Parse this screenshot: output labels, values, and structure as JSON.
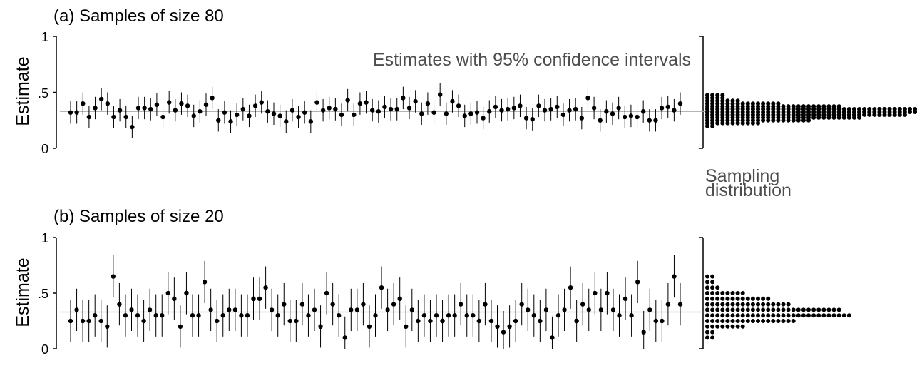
{
  "chart_data": [
    {
      "type": "scatter",
      "title": "(a) Samples of size 80",
      "ylabel": "Estimate",
      "ylim": [
        0,
        1
      ],
      "yticks": [
        "0",
        ".5",
        "1"
      ],
      "true_value": 0.33,
      "annotation": "Estimates with 95% confidence intervals",
      "estimates": [
        0.32,
        0.32,
        0.4,
        0.28,
        0.36,
        0.44,
        0.4,
        0.28,
        0.34,
        0.28,
        0.19,
        0.36,
        0.36,
        0.35,
        0.39,
        0.28,
        0.41,
        0.34,
        0.4,
        0.38,
        0.29,
        0.33,
        0.39,
        0.45,
        0.25,
        0.32,
        0.24,
        0.3,
        0.35,
        0.29,
        0.38,
        0.41,
        0.33,
        0.31,
        0.29,
        0.24,
        0.34,
        0.28,
        0.32,
        0.24,
        0.41,
        0.34,
        0.36,
        0.35,
        0.3,
        0.43,
        0.3,
        0.4,
        0.41,
        0.34,
        0.33,
        0.37,
        0.35,
        0.35,
        0.45,
        0.36,
        0.42,
        0.31,
        0.4,
        0.32,
        0.48,
        0.31,
        0.42,
        0.38,
        0.29,
        0.31,
        0.32,
        0.27,
        0.33,
        0.37,
        0.34,
        0.35,
        0.36,
        0.38,
        0.27,
        0.26,
        0.38,
        0.34,
        0.35,
        0.37,
        0.3,
        0.34,
        0.35,
        0.27,
        0.45,
        0.36,
        0.25,
        0.33,
        0.31,
        0.36,
        0.28,
        0.29,
        0.28,
        0.33,
        0.25,
        0.25,
        0.36,
        0.37,
        0.34,
        0.4
      ],
      "ci_half_width": 0.1,
      "sampling_distribution": {
        "values": [
          0.2,
          0.225,
          0.25,
          0.275,
          0.3,
          0.325,
          0.35,
          0.375,
          0.4,
          0.425,
          0.45,
          0.475
        ],
        "counts": [
          2,
          11,
          21,
          31,
          40,
          50,
          42,
          27,
          15,
          7,
          4,
          4
        ]
      }
    },
    {
      "type": "scatter",
      "title": "(b) Samples of size 20",
      "ylabel": "Estimate",
      "ylim": [
        0,
        1
      ],
      "yticks": [
        "0",
        ".5",
        "1"
      ],
      "true_value": 0.33,
      "annotation": "Sampling distribution",
      "annotation_lines": [
        "Sampling",
        "distribution"
      ],
      "estimates": [
        0.25,
        0.35,
        0.25,
        0.25,
        0.3,
        0.25,
        0.2,
        0.65,
        0.4,
        0.3,
        0.35,
        0.3,
        0.25,
        0.35,
        0.3,
        0.3,
        0.5,
        0.45,
        0.2,
        0.5,
        0.3,
        0.3,
        0.6,
        0.35,
        0.25,
        0.3,
        0.35,
        0.35,
        0.3,
        0.3,
        0.45,
        0.45,
        0.55,
        0.35,
        0.3,
        0.4,
        0.25,
        0.25,
        0.4,
        0.3,
        0.35,
        0.2,
        0.5,
        0.4,
        0.3,
        0.1,
        0.35,
        0.35,
        0.4,
        0.2,
        0.3,
        0.55,
        0.35,
        0.4,
        0.45,
        0.2,
        0.35,
        0.25,
        0.3,
        0.25,
        0.3,
        0.25,
        0.3,
        0.3,
        0.4,
        0.3,
        0.3,
        0.25,
        0.4,
        0.25,
        0.2,
        0.15,
        0.2,
        0.25,
        0.4,
        0.35,
        0.3,
        0.25,
        0.35,
        0.1,
        0.3,
        0.35,
        0.55,
        0.25,
        0.4,
        0.35,
        0.5,
        0.35,
        0.5,
        0.35,
        0.3,
        0.45,
        0.3,
        0.6,
        0.15,
        0.35,
        0.25,
        0.25,
        0.4,
        0.65,
        0.4
      ],
      "ci_half_width": 0.19,
      "sampling_distribution": {
        "values": [
          0.1,
          0.15,
          0.2,
          0.25,
          0.3,
          0.35,
          0.4,
          0.45,
          0.5,
          0.55,
          0.6,
          0.65
        ],
        "counts": [
          2,
          2,
          8,
          18,
          29,
          27,
          17,
          13,
          8,
          3,
          2,
          2
        ]
      }
    }
  ]
}
